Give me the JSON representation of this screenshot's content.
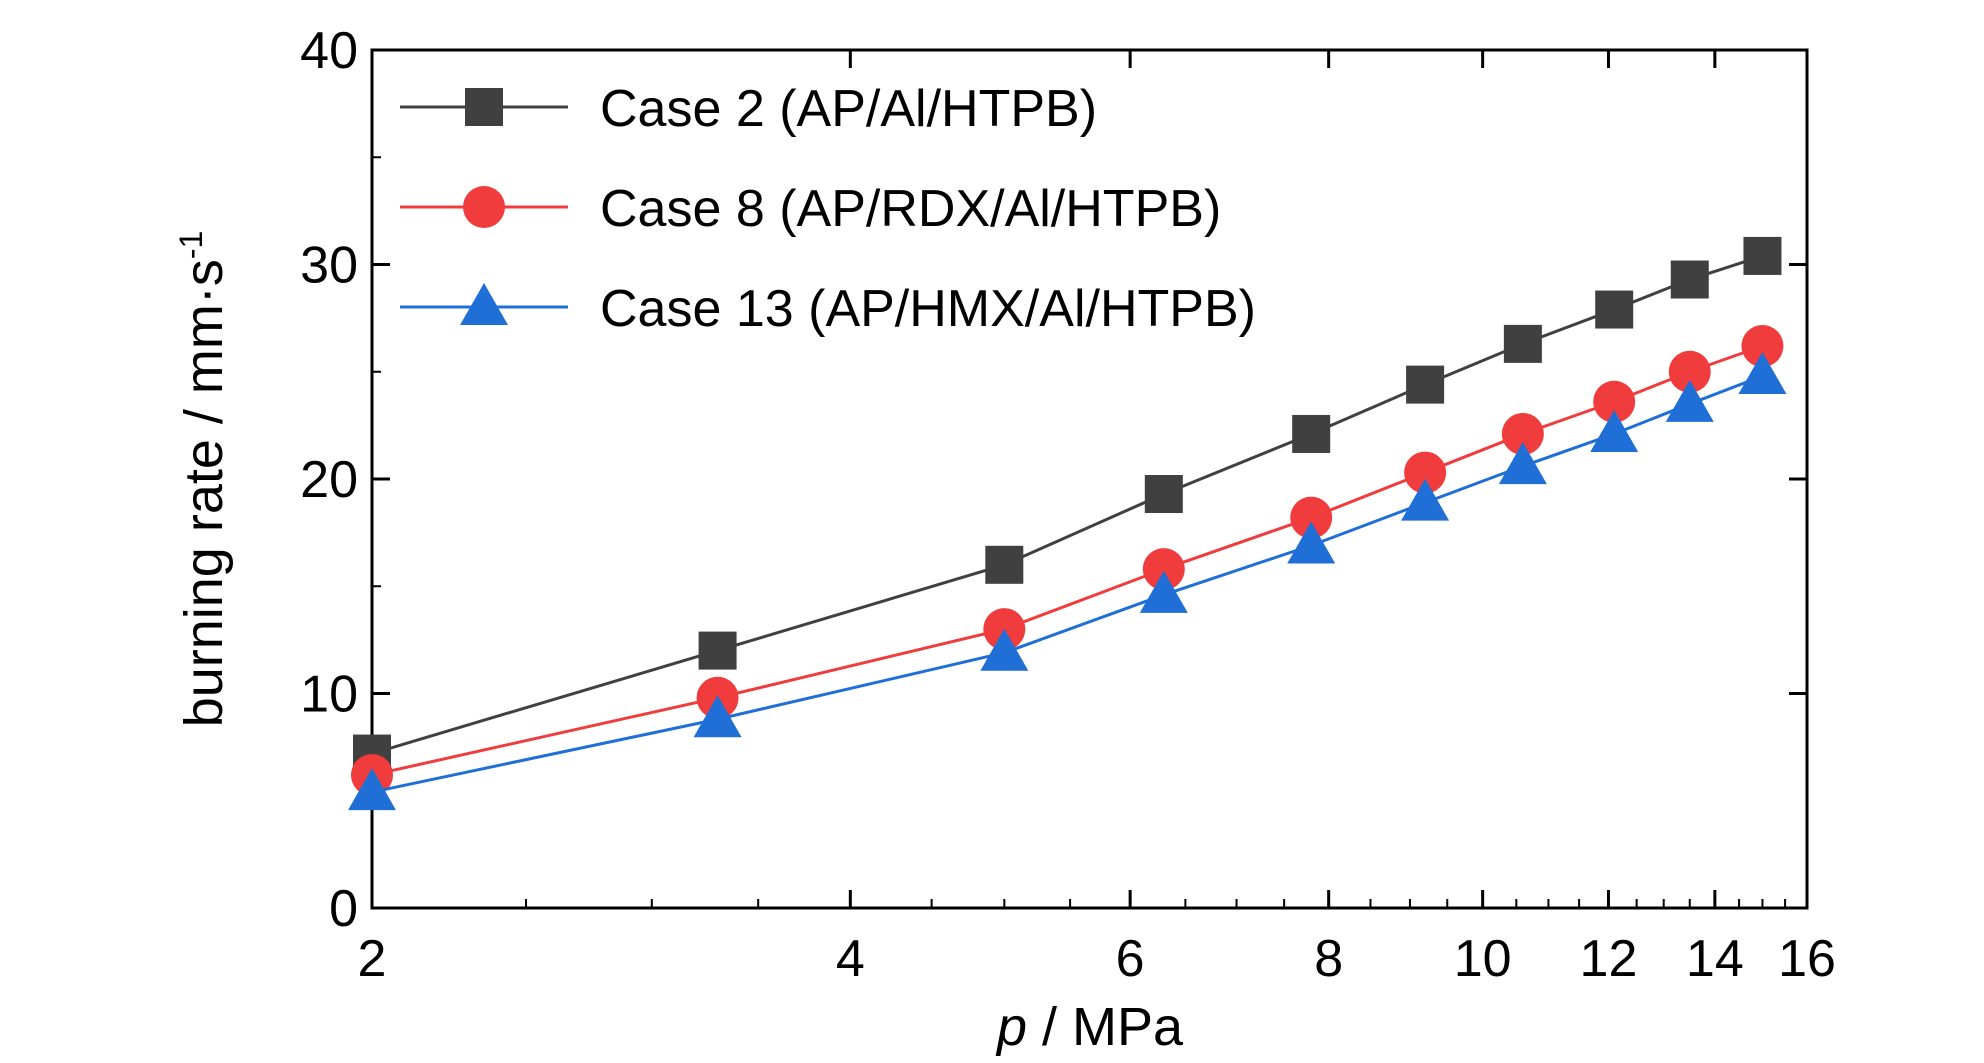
{
  "chart_data": {
    "type": "line",
    "title": "",
    "xlabel_italic": "p",
    "xlabel_rest": " / MPa",
    "ylabel_main": "burning rate / mm·s",
    "ylabel_sup": "-1",
    "x_scale": "log",
    "xlim": [
      2,
      16
    ],
    "ylim": [
      0,
      40
    ],
    "x_ticks": [
      {
        "value": 2,
        "label": "2"
      },
      {
        "value": 4,
        "label": "4"
      },
      {
        "value": 6,
        "label": "6"
      },
      {
        "value": 8,
        "label": "8"
      },
      {
        "value": 10,
        "label": "10"
      },
      {
        "value": 12,
        "label": "12"
      },
      {
        "value": 14,
        "label": "14"
      },
      {
        "value": 16,
        "label": "16"
      }
    ],
    "y_ticks": [
      {
        "value": 0,
        "label": "0"
      },
      {
        "value": 10,
        "label": "10"
      },
      {
        "value": 20,
        "label": "20"
      },
      {
        "value": 30,
        "label": "30"
      },
      {
        "value": 40,
        "label": "40"
      }
    ],
    "grid": false,
    "legend_position": "top-left",
    "x": [
      2.0,
      3.3,
      5.0,
      6.3,
      7.8,
      9.2,
      10.6,
      12.1,
      13.5,
      15.0
    ],
    "series": [
      {
        "name": "Case 2 (AP/Al/HTPB)",
        "color": "#404040",
        "marker": "square",
        "values": [
          7.2,
          12.0,
          16.0,
          19.3,
          22.1,
          24.4,
          26.3,
          27.9,
          29.3,
          30.4
        ]
      },
      {
        "name": "Case 8 (AP/RDX/Al/HTPB)",
        "color": "#f03c3c",
        "marker": "circle",
        "values": [
          6.2,
          9.8,
          13.0,
          15.8,
          18.2,
          20.3,
          22.1,
          23.6,
          25.0,
          26.2
        ]
      },
      {
        "name": "Case 13 (AP/HMX/Al/HTPB)",
        "color": "#1f6fd6",
        "marker": "triangle",
        "values": [
          5.4,
          8.8,
          11.9,
          14.6,
          16.9,
          18.9,
          20.6,
          22.1,
          23.5,
          24.8
        ]
      }
    ]
  }
}
